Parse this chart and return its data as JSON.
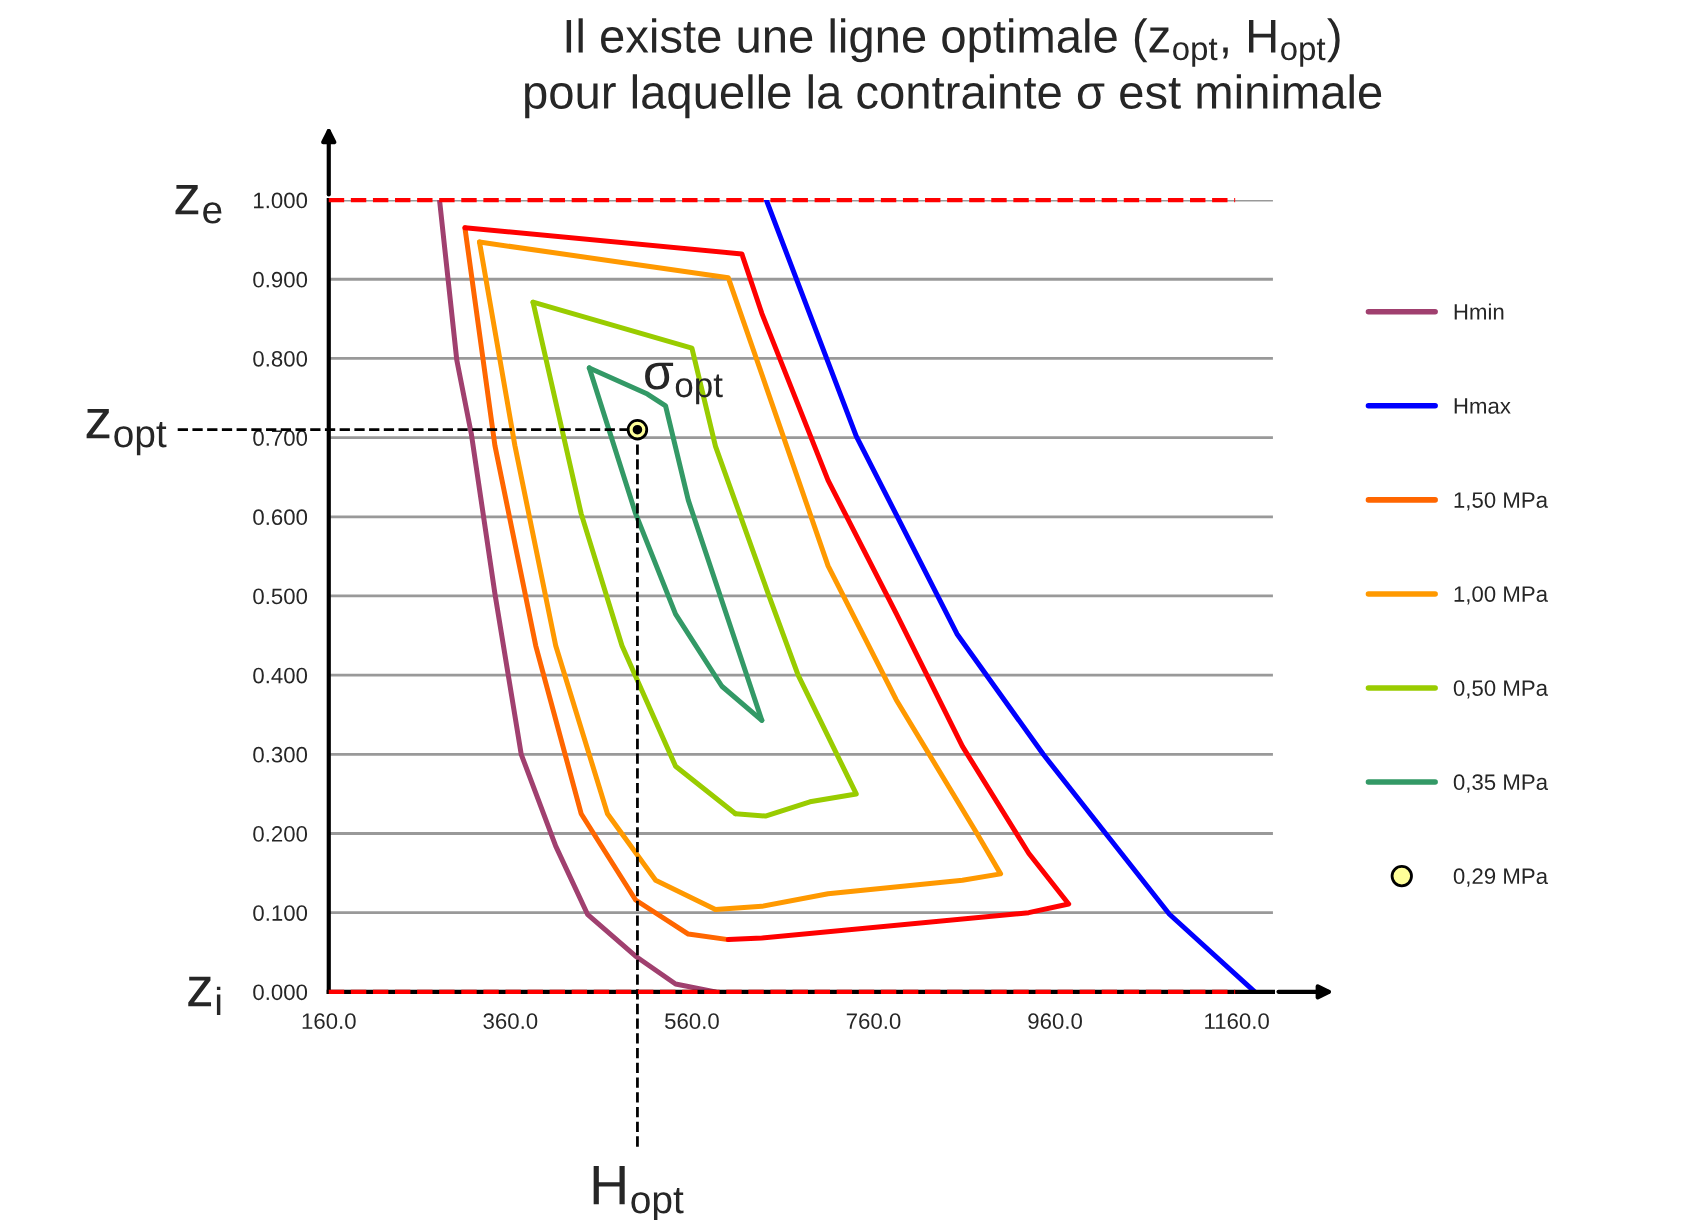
{
  "chart_data": {
    "type": "line",
    "title": "Il existe une ligne optimale (z$_{opt}$, H$_{opt}$)\npour laquelle la contrainte σ est minimale",
    "xlim": [
      160,
      1200
    ],
    "ylim": [
      0,
      1
    ],
    "xticks": [
      {
        "value": 160,
        "label": "160.0"
      },
      {
        "value": 360,
        "label": "360.0"
      },
      {
        "value": 560,
        "label": "560.0"
      },
      {
        "value": 760,
        "label": "760.0"
      },
      {
        "value": 960,
        "label": "960.0"
      },
      {
        "value": 1160,
        "label": "1160.0"
      }
    ],
    "yticks": [
      {
        "value": 0,
        "label": "0.000"
      },
      {
        "value": 0.1,
        "label": "0.100"
      },
      {
        "value": 0.2,
        "label": "0.200"
      },
      {
        "value": 0.3,
        "label": "0.300"
      },
      {
        "value": 0.4,
        "label": "0.400"
      },
      {
        "value": 0.5,
        "label": "0.500"
      },
      {
        "value": 0.6,
        "label": "0.600"
      },
      {
        "value": 0.7,
        "label": "0.700"
      },
      {
        "value": 0.8,
        "label": "0.800"
      },
      {
        "value": 0.9,
        "label": "0.900"
      },
      {
        "value": 1,
        "label": "1.000"
      }
    ],
    "grid": "y",
    "legend": "right",
    "marker": "none",
    "line_style": "solid",
    "series": [
      {
        "name": "Hmin",
        "color": "#a0406f",
        "x": [
          282,
          301,
          317,
          343,
          372,
          410,
          445,
          498,
          542,
          586
        ],
        "values": [
          1.0,
          0.798,
          0.705,
          0.503,
          0.3,
          0.184,
          0.098,
          0.045,
          0.01,
          0.0
        ]
      },
      {
        "name": "Hmax",
        "color": "#0000ff",
        "x": [
          642,
          741,
          852,
          947,
          1086,
          1180
        ],
        "values": [
          1.0,
          0.702,
          0.452,
          0.3,
          0.098,
          0.0
        ]
      },
      {
        "name": "1,50 MPa",
        "color": "#ff6600",
        "x": [
          310,
          343,
          388,
          438,
          498,
          556,
          600
        ],
        "values": [
          0.965,
          0.69,
          0.437,
          0.225,
          0.116,
          0.073,
          0.066
        ]
      },
      {
        "color": "#ff0000",
        "x": [
          310,
          615,
          637,
          710,
          785,
          858,
          931,
          975,
          931,
          637,
          600
        ],
        "values": [
          0.965,
          0.932,
          0.857,
          0.646,
          0.478,
          0.31,
          0.175,
          0.111,
          0.1,
          0.068,
          0.066
        ]
      },
      {
        "name": "1,00 MPa",
        "color": "#ff9900",
        "x": [
          326,
          600,
          637,
          710,
          785,
          874,
          900,
          858,
          710,
          637,
          586
        ],
        "values": [
          0.947,
          0.902,
          0.78,
          0.538,
          0.369,
          0.2,
          0.149,
          0.141,
          0.124,
          0.108,
          0.104
        ]
      },
      {
        "color": "#ff9900",
        "x": [
          326,
          365,
          410,
          467,
          520,
          586
        ],
        "values": [
          0.947,
          0.69,
          0.437,
          0.225,
          0.141,
          0.104
        ]
      },
      {
        "name": "0,50 MPa",
        "color": "#99cc00",
        "x": [
          385,
          560,
          586,
          644,
          677,
          741,
          690,
          641,
          608
        ],
        "values": [
          0.871,
          0.813,
          0.689,
          0.503,
          0.4,
          0.25,
          0.24,
          0.222,
          0.225
        ]
      },
      {
        "color": "#99cc00",
        "x": [
          385,
          438,
          483,
          542,
          608
        ],
        "values": [
          0.871,
          0.604,
          0.437,
          0.285,
          0.225
        ]
      },
      {
        "name": "0,35 MPa",
        "color": "#339966",
        "x": [
          447,
          511,
          531,
          556,
          600,
          637
        ],
        "values": [
          0.788,
          0.755,
          0.74,
          0.621,
          0.47,
          0.343
        ]
      },
      {
        "color": "#339966",
        "x": [
          447,
          498,
          542,
          593,
          637
        ],
        "values": [
          0.788,
          0.604,
          0.477,
          0.386,
          0.343
        ]
      },
      {
        "name": "0,29 MPa",
        "type": "scatter",
        "marker": "circle",
        "color": "#ffff99",
        "x": [
          500
        ],
        "values": [
          0.71
        ]
      }
    ],
    "ref_lines": [
      {
        "axis": "y",
        "value": 1,
        "label": "z$_{e}$",
        "color": "#ff0000",
        "line_style": "dashed"
      },
      {
        "axis": "y",
        "value": 0,
        "label": "z$_{i}$",
        "color": "#ff0000",
        "line_style": "dashed"
      },
      {
        "axis": "y",
        "value": 0.71,
        "label": "z$_{opt}$",
        "color": "#000000",
        "line_style": "dashed"
      },
      {
        "axis": "x",
        "value": 500,
        "label": "H$_{opt}$",
        "color": "#000000",
        "line_style": "dashed"
      }
    ],
    "annotations": [
      {
        "text": "σ$_{opt}$",
        "x": 500,
        "y": 0.71
      }
    ]
  }
}
